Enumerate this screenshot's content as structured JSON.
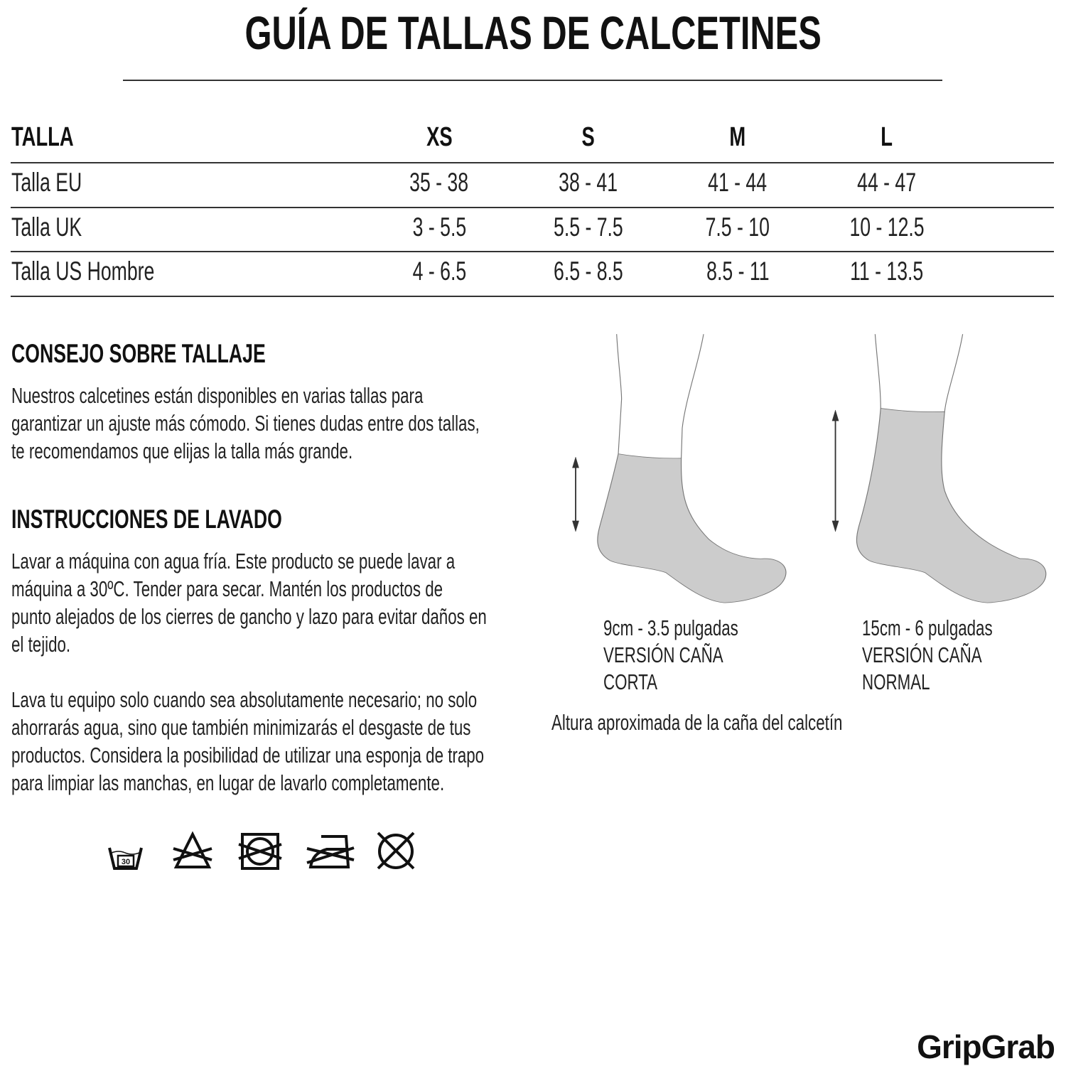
{
  "title": "GUÍA DE TALLAS DE CALCETINES",
  "size_table": {
    "header": [
      "TALLA",
      "XS",
      "S",
      "M",
      "L"
    ],
    "rows": [
      {
        "label": "Talla EU",
        "values": [
          "35 - 38",
          "38 - 41",
          "41 - 44",
          "44 - 47"
        ]
      },
      {
        "label": "Talla UK",
        "values": [
          "3 - 5.5",
          "5.5 - 7.5",
          "7.5 - 10",
          "10 - 12.5"
        ]
      },
      {
        "label": "Talla US Hombre",
        "values": [
          "4 - 6.5",
          "6.5 - 8.5",
          "8.5 - 11",
          "11 - 13.5"
        ]
      }
    ]
  },
  "sizing_advice": {
    "heading": "CONSEJO SOBRE TALLAJE",
    "lines": [
      "Nuestros calcetines están disponibles en varias tallas para",
      "garantizar un ajuste más cómodo. Si tienes dudas entre dos tallas,",
      "te recomendamos que elijas la talla más grande."
    ]
  },
  "washing": {
    "heading": "INSTRUCCIONES DE LAVADO",
    "paragraph1": [
      "Lavar a máquina con agua fría. Este producto se puede lavar a",
      "máquina a 30ºC. Tender para secar. Mantén los productos de",
      "punto alejados de los cierres de gancho y lazo para evitar daños en",
      "el tejido."
    ],
    "paragraph2": [
      "Lava tu equipo solo cuando sea absolutamente necesario; no solo",
      "ahorrarás agua, sino que también minimizarás el desgaste de tus",
      "productos. Considera la posibilidad de utilizar una esponja de trapo",
      "para limpiar las manchas, en lugar de lavarlo completamente."
    ],
    "icons": [
      "wash-30-icon",
      "no-bleach-icon",
      "no-tumble-dry-icon",
      "no-iron-icon",
      "no-dry-clean-icon"
    ],
    "wash_temp": "30"
  },
  "sock_versions": [
    {
      "lines": [
        "9cm - 3.5 pulgadas",
        "VERSIÓN CAÑA",
        "CORTA"
      ]
    },
    {
      "lines": [
        "15cm - 6 pulgadas",
        "VERSIÓN CAÑA",
        "NORMAL"
      ]
    }
  ],
  "sock_caption": "Altura aproximada de la caña del calcetín",
  "colors": {
    "sock_fill": "#cccccc",
    "text": "#111111"
  },
  "logo": "GripGrab"
}
